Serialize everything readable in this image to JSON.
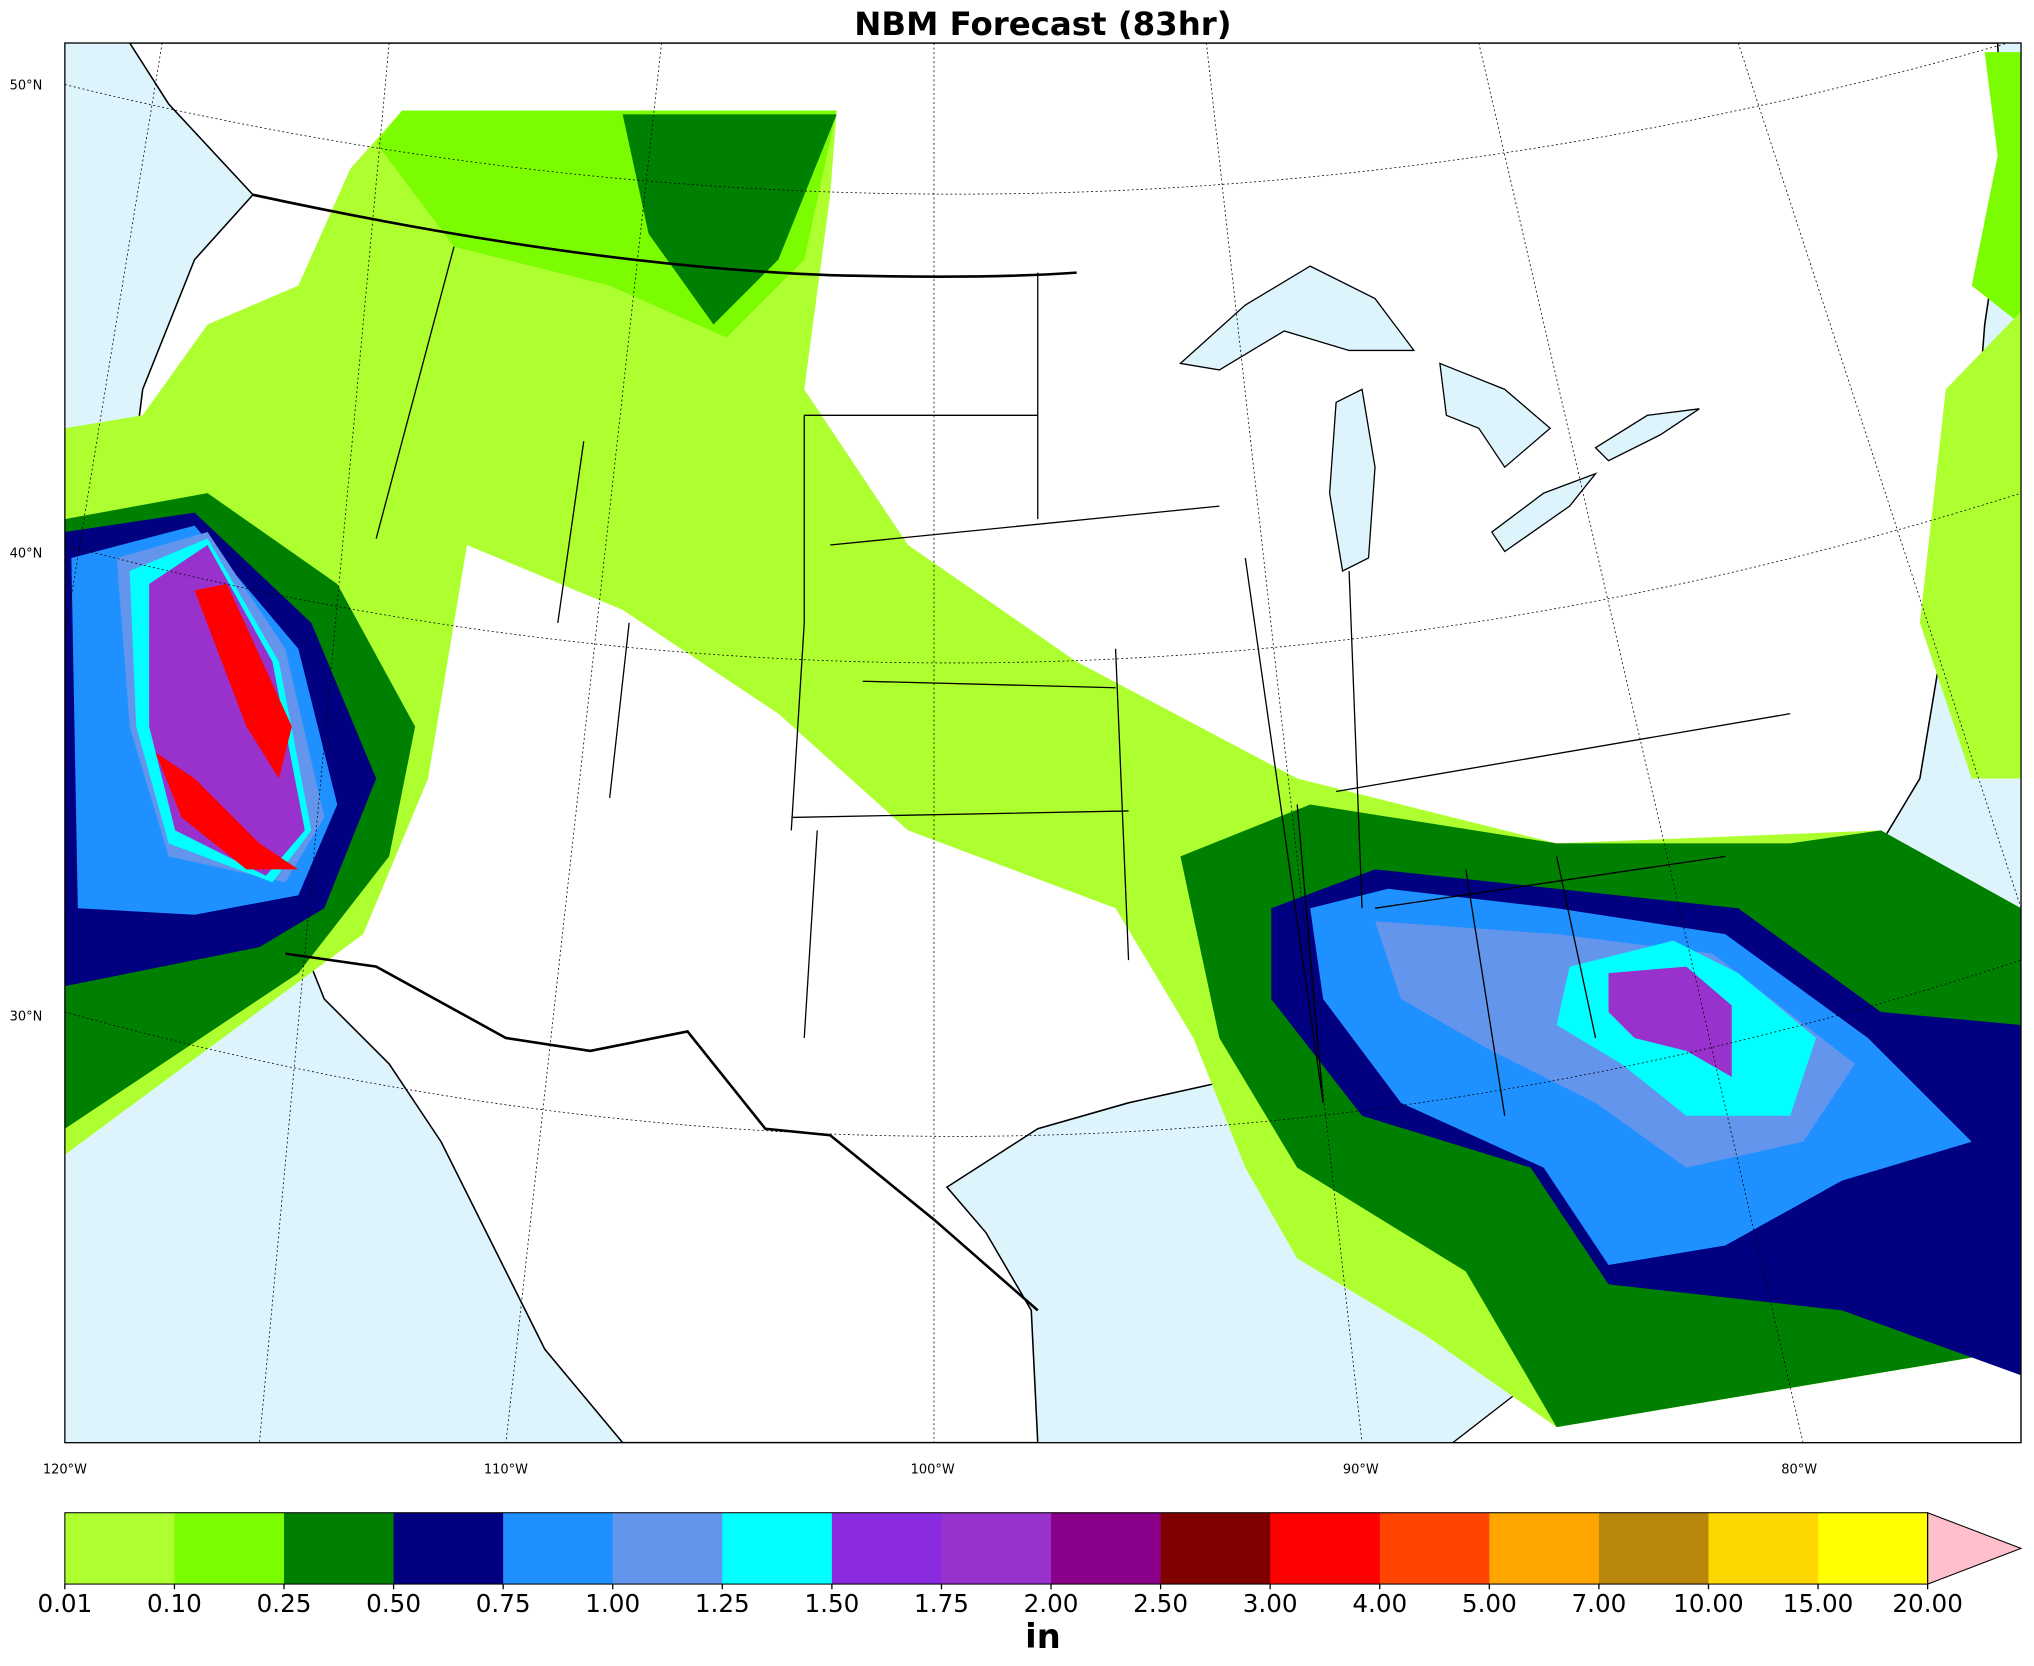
{
  "title": "NBM Forecast (83hr)",
  "map": {
    "lat_labels": [
      "50°N",
      "40°N",
      "30°N"
    ],
    "lon_labels": [
      "120°W",
      "110°W",
      "100°W",
      "90°W",
      "80°W"
    ]
  },
  "colorbar": {
    "label": "in",
    "ticks": [
      {
        "value": 0.01,
        "label": "0.01"
      },
      {
        "value": 0.1,
        "label": "0.10"
      },
      {
        "value": 0.25,
        "label": "0.25"
      },
      {
        "value": 0.5,
        "label": "0.50"
      },
      {
        "value": 0.75,
        "label": "0.75"
      },
      {
        "value": 1,
        "label": "1.00"
      },
      {
        "value": 1.25,
        "label": "1.25"
      },
      {
        "value": 1.5,
        "label": "1.50"
      },
      {
        "value": 1.75,
        "label": "1.75"
      },
      {
        "value": 2,
        "label": "2.00"
      },
      {
        "value": 2.5,
        "label": "2.50"
      },
      {
        "value": 3,
        "label": "3.00"
      },
      {
        "value": 4,
        "label": "4.00"
      },
      {
        "value": 5,
        "label": "5.00"
      },
      {
        "value": 7,
        "label": "7.00"
      },
      {
        "value": 10,
        "label": "10.00"
      },
      {
        "value": 15,
        "label": "15.00"
      },
      {
        "value": 20,
        "label": "20.00"
      }
    ],
    "colors": [
      "#adff2f",
      "#7cfc00",
      "#008000",
      "#000080",
      "#1e90ff",
      "#6495ed",
      "#00ffff",
      "#8a2be2",
      "#9932cc",
      "#8b008b",
      "#800000",
      "#ff0000",
      "#ff4500",
      "#ffa500",
      "#b8860b",
      "#ffd700",
      "#ffff00"
    ],
    "extend_color": "#ffc0cb"
  }
}
